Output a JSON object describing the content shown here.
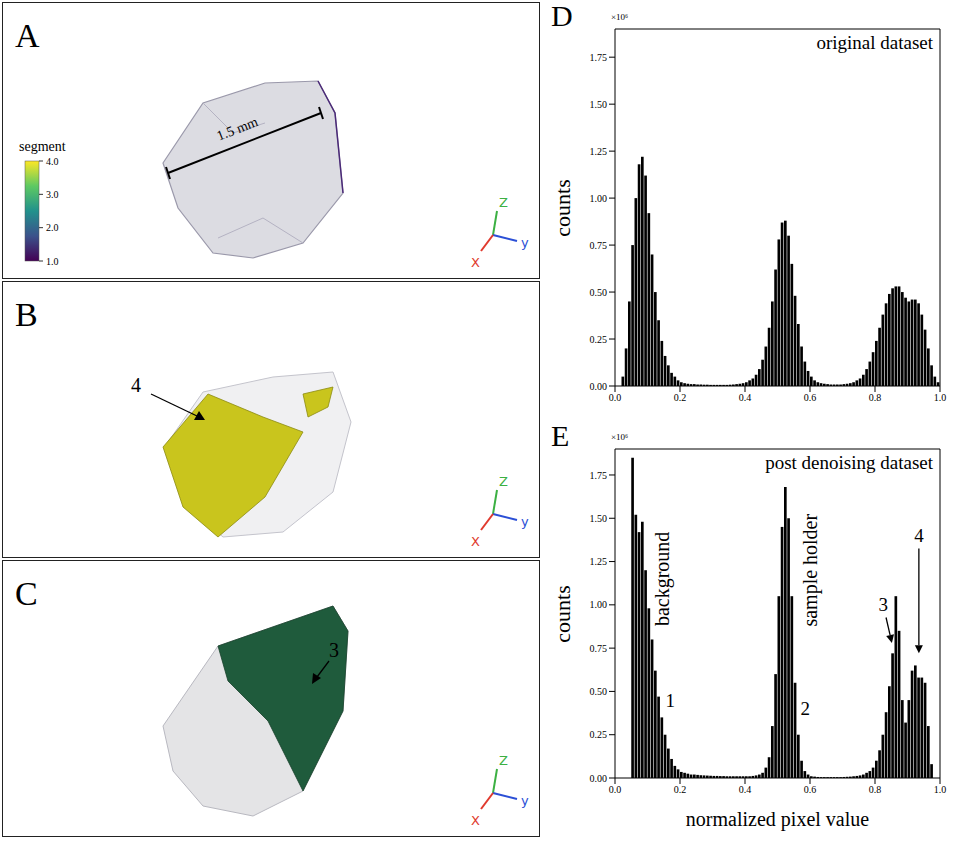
{
  "panels": [
    {
      "letter": "A",
      "colorbar": {
        "title": "segment",
        "range": [
          1,
          4
        ],
        "ticks": [
          {
            "value": 1,
            "label": "1.0"
          },
          {
            "value": 2,
            "label": "2.0"
          },
          {
            "value": 3,
            "label": "3.0"
          },
          {
            "value": 4,
            "label": "4.0"
          }
        ]
      },
      "scale_bar": "1.5 mm",
      "axes": {
        "x": "X",
        "y": "y",
        "z": "Z"
      }
    },
    {
      "letter": "B",
      "segment": {
        "label": "4",
        "color": "#c9c51d"
      },
      "axes": {
        "x": "X",
        "y": "y",
        "z": "Z"
      }
    },
    {
      "letter": "C",
      "segment": {
        "label": "3",
        "color": "#1f5b3c"
      },
      "axes": {
        "x": "X",
        "y": "y",
        "z": "Z"
      }
    }
  ],
  "chart_data": [
    {
      "letter": "D",
      "type": "bar",
      "title": "original dataset",
      "y_label": "counts",
      "y_multiplier": "×10⁶",
      "bins": [
        0,
        0.01,
        0.02,
        0.03,
        0.04,
        0.05,
        0.06,
        0.07,
        0.08,
        0.09,
        0.1,
        0.11,
        0.12,
        0.13,
        0.14,
        0.15,
        0.16,
        0.17,
        0.18,
        0.19,
        0.2,
        0.21,
        0.22,
        0.23,
        0.24,
        0.25,
        0.26,
        0.27,
        0.28,
        0.29,
        0.3,
        0.31,
        0.32,
        0.33,
        0.34,
        0.35,
        0.36,
        0.37,
        0.38,
        0.39,
        0.4,
        0.41,
        0.42,
        0.43,
        0.44,
        0.45,
        0.46,
        0.47,
        0.48,
        0.49,
        0.5,
        0.51,
        0.52,
        0.53,
        0.54,
        0.55,
        0.56,
        0.57,
        0.58,
        0.59,
        0.6,
        0.61,
        0.62,
        0.63,
        0.64,
        0.65,
        0.66,
        0.67,
        0.68,
        0.69,
        0.7,
        0.71,
        0.72,
        0.73,
        0.74,
        0.75,
        0.76,
        0.77,
        0.78,
        0.79,
        0.8,
        0.81,
        0.82,
        0.83,
        0.84,
        0.85,
        0.86,
        0.87,
        0.88,
        0.89,
        0.9,
        0.91,
        0.92,
        0.93,
        0.94,
        0.95,
        0.96,
        0.97,
        0.98,
        0.99,
        1
      ],
      "values": [
        0,
        0,
        0.05,
        0.2,
        0.45,
        0.75,
        1.0,
        1.18,
        1.22,
        1.12,
        0.92,
        0.7,
        0.5,
        0.35,
        0.24,
        0.16,
        0.11,
        0.07,
        0.05,
        0.03,
        0.02,
        0.015,
        0.012,
        0.01,
        0.01,
        0.008,
        0.008,
        0.007,
        0.007,
        0.006,
        0.006,
        0.006,
        0.006,
        0.006,
        0.006,
        0.007,
        0.008,
        0.01,
        0.012,
        0.015,
        0.02,
        0.03,
        0.04,
        0.06,
        0.09,
        0.14,
        0.21,
        0.31,
        0.45,
        0.62,
        0.78,
        0.87,
        0.88,
        0.8,
        0.65,
        0.48,
        0.33,
        0.21,
        0.13,
        0.08,
        0.05,
        0.03,
        0.02,
        0.015,
        0.012,
        0.01,
        0.008,
        0.008,
        0.008,
        0.008,
        0.01,
        0.012,
        0.015,
        0.02,
        0.03,
        0.04,
        0.06,
        0.09,
        0.13,
        0.18,
        0.24,
        0.31,
        0.38,
        0.44,
        0.49,
        0.52,
        0.53,
        0.53,
        0.5,
        0.47,
        0.45,
        0.46,
        0.46,
        0.44,
        0.38,
        0.3,
        0.2,
        0.11,
        0.05,
        0.02
      ],
      "color": "#000000",
      "xlim": [
        0,
        1
      ],
      "xticks": [
        {
          "value": 0,
          "label": "0.0"
        },
        0.2,
        0.4,
        0.6,
        0.8,
        {
          "value": 1,
          "label": "1.0"
        }
      ],
      "ylim": [
        0,
        1.9
      ],
      "yticks": [
        {
          "value": 0,
          "label": "0.00"
        },
        0.25,
        {
          "value": 0.5,
          "label": "0.50"
        },
        0.75,
        {
          "value": 1,
          "label": "1.00"
        },
        1.25,
        {
          "value": 1.5,
          "label": "1.50"
        },
        1.75
      ]
    },
    {
      "letter": "E",
      "type": "bar",
      "title": "post denoising dataset",
      "y_label": "counts",
      "x_label": "normalized pixel value",
      "y_multiplier": "×10⁶",
      "bins": [
        0,
        0.01,
        0.02,
        0.03,
        0.04,
        0.05,
        0.06,
        0.07,
        0.08,
        0.09,
        0.1,
        0.11,
        0.12,
        0.13,
        0.14,
        0.15,
        0.16,
        0.17,
        0.18,
        0.19,
        0.2,
        0.21,
        0.22,
        0.23,
        0.24,
        0.25,
        0.26,
        0.27,
        0.28,
        0.29,
        0.3,
        0.31,
        0.32,
        0.33,
        0.34,
        0.35,
        0.36,
        0.37,
        0.38,
        0.39,
        0.4,
        0.41,
        0.42,
        0.43,
        0.44,
        0.45,
        0.46,
        0.47,
        0.48,
        0.49,
        0.5,
        0.51,
        0.52,
        0.53,
        0.54,
        0.55,
        0.56,
        0.57,
        0.58,
        0.59,
        0.6,
        0.61,
        0.62,
        0.63,
        0.64,
        0.65,
        0.66,
        0.67,
        0.68,
        0.69,
        0.7,
        0.71,
        0.72,
        0.73,
        0.74,
        0.75,
        0.76,
        0.77,
        0.78,
        0.79,
        0.8,
        0.81,
        0.82,
        0.83,
        0.84,
        0.85,
        0.86,
        0.87,
        0.88,
        0.89,
        0.9,
        0.91,
        0.92,
        0.93,
        0.94,
        0.95,
        0.96,
        0.97,
        0.98,
        0.99,
        1
      ],
      "values": [
        0,
        0,
        0,
        0,
        0,
        1.85,
        1.52,
        1.42,
        1.48,
        1.2,
        0.98,
        0.8,
        0.62,
        0.47,
        0.35,
        0.25,
        0.17,
        0.11,
        0.07,
        0.05,
        0.035,
        0.03,
        0.025,
        0.02,
        0.02,
        0.018,
        0.016,
        0.015,
        0.014,
        0.013,
        0.012,
        0.012,
        0.011,
        0.011,
        0.01,
        0.01,
        0.01,
        0.01,
        0.01,
        0.01,
        0.01,
        0.01,
        0.012,
        0.015,
        0.02,
        0.03,
        0.06,
        0.12,
        0.3,
        0.6,
        1.05,
        1.45,
        1.68,
        1.5,
        1.05,
        0.55,
        0.25,
        0.1,
        0.04,
        0.02,
        0.01,
        0.008,
        0.006,
        0.005,
        0.005,
        0.005,
        0.005,
        0.005,
        0.005,
        0.005,
        0.006,
        0.007,
        0.008,
        0.01,
        0.012,
        0.015,
        0.02,
        0.03,
        0.04,
        0.06,
        0.1,
        0.16,
        0.25,
        0.38,
        0.53,
        0.72,
        1.05,
        0.85,
        0.45,
        0.32,
        0.45,
        0.62,
        0.65,
        0.58,
        0.58,
        0.55,
        0.3,
        0.08,
        0,
        0
      ],
      "color": "#000000",
      "xlim": [
        0,
        1
      ],
      "xticks": [
        {
          "value": 0,
          "label": "0.0"
        },
        0.2,
        0.4,
        0.6,
        0.8,
        {
          "value": 1,
          "label": "1.0"
        }
      ],
      "ylim": [
        0,
        1.9
      ],
      "yticks": [
        {
          "value": 0,
          "label": "0.00"
        },
        0.25,
        {
          "value": 0.5,
          "label": "0.50"
        },
        0.75,
        {
          "value": 1,
          "label": "1.00"
        },
        1.25,
        {
          "value": 1.5,
          "label": "1.50"
        },
        1.75
      ],
      "annotations": [
        {
          "text": "background",
          "x": 0.145,
          "y": 1.15
        },
        {
          "text": "1",
          "x": 0.17,
          "y": 0.45
        },
        {
          "text": "sample holder",
          "x": 0.6,
          "y": 1.2
        },
        {
          "text": "2",
          "x": 0.585,
          "y": 0.4
        },
        {
          "text": "3",
          "x": 0.825,
          "y": 1.0,
          "arrow_to": [
            0.852,
            0.78
          ]
        },
        {
          "text": "4",
          "x": 0.935,
          "y": 1.4,
          "arrow_to": [
            0.935,
            0.72
          ]
        }
      ]
    }
  ]
}
